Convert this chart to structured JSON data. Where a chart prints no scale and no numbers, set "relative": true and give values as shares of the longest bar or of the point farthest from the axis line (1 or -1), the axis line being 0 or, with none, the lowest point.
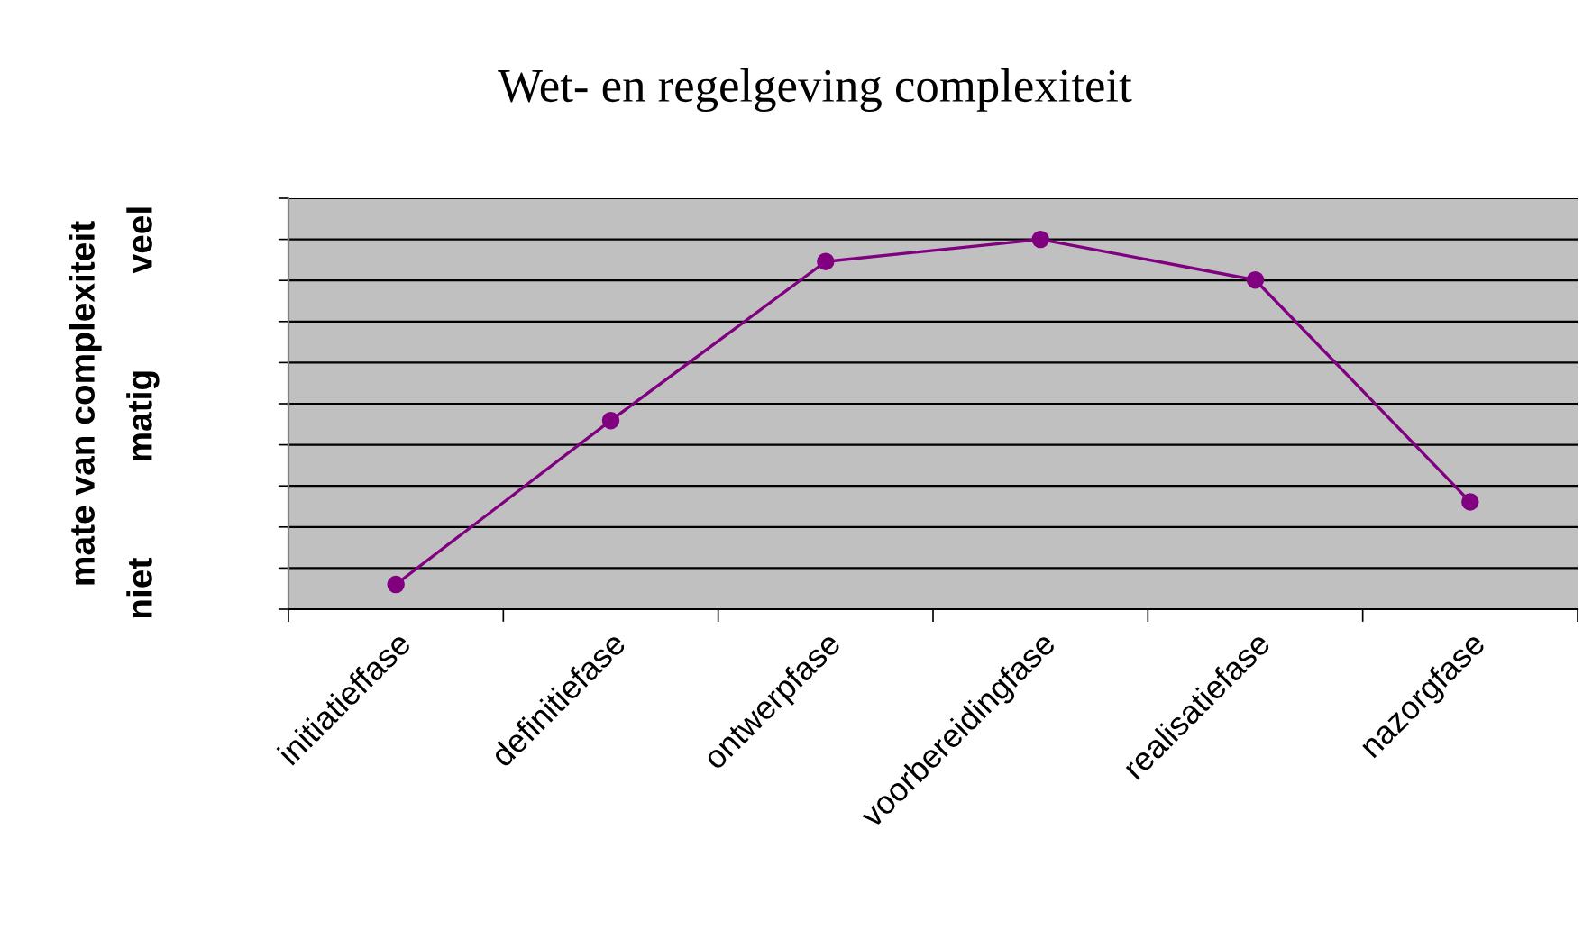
{
  "chart_data": {
    "type": "line",
    "title": "Wet- en regelgeving complexiteit",
    "ylabel": "mate van complexiteit",
    "categories": [
      "initiatieffase",
      "definitiefase",
      "ontwerpfase",
      "voorbereidingfase",
      "realisatiefase",
      "nazorgfase"
    ],
    "series": [
      {
        "color": "#800080",
        "values": [
          0.067,
          0.51,
          0.94,
          1,
          0.89,
          0.29
        ]
      }
    ],
    "relative": true,
    "annotations": [
      "niet",
      "matig",
      "veel"
    ],
    "grid": true,
    "marker": "circle",
    "line_style": "solid",
    "legend": false
  }
}
